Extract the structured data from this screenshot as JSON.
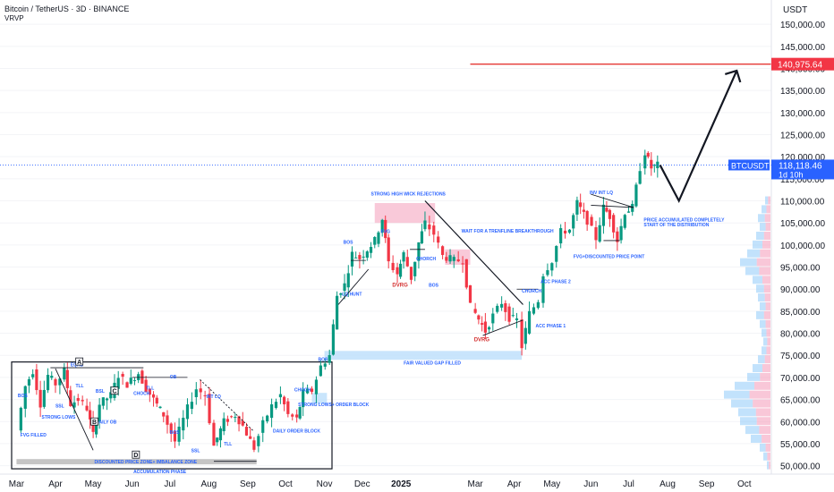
{
  "header": {
    "title": "Bitcoin / TetherUS · 3D · BINANCE",
    "indicator": "VRVP"
  },
  "chart_data": {
    "type": "candlestick",
    "symbol": "BTCUSDT",
    "y_axis": {
      "unit": "USDT",
      "ticks": [
        "150,000.00",
        "145,000.00",
        "140,000.00",
        "135,000.00",
        "130,000.00",
        "125,000.00",
        "120,000.00",
        "115,000.00",
        "110,000.00",
        "105,000.00",
        "100,000.00",
        "95,000.00",
        "90,000.00",
        "85,000.00",
        "80,000.00",
        "75,000.00",
        "70,000.00",
        "65,000.00",
        "60,000.00",
        "55,000.00",
        "50,000.00"
      ],
      "values": [
        150000,
        145000,
        140000,
        135000,
        130000,
        125000,
        120000,
        115000,
        110000,
        105000,
        100000,
        95000,
        90000,
        85000,
        80000,
        75000,
        70000,
        65000,
        60000,
        55000,
        50000
      ],
      "ylim": [
        48500,
        155500
      ]
    },
    "x_axis": {
      "ticks": [
        "Mar",
        "Apr",
        "May",
        "Jun",
        "Jul",
        "Aug",
        "Sep",
        "Oct",
        "Nov",
        "Dec",
        "2025",
        "Mar",
        "Apr",
        "May",
        "Jun",
        "Jul",
        "Aug",
        "Sep",
        "Oct"
      ]
    },
    "price_labels": {
      "target": "140,975.64",
      "current_symbol": "BTCUSDT",
      "current_price": "118,118.46",
      "countdown": "1d 10h"
    },
    "target_value": 140975.64,
    "current_value": 118118.46,
    "close_path": [
      [
        "2024-03-01",
        58000
      ],
      [
        "2024-03-08",
        68000
      ],
      [
        "2024-03-14",
        71500
      ],
      [
        "2024-03-20",
        64000
      ],
      [
        "2024-03-26",
        70500
      ],
      [
        "2024-04-01",
        68500
      ],
      [
        "2024-04-08",
        71500
      ],
      [
        "2024-04-13",
        64000
      ],
      [
        "2024-04-19",
        65000
      ],
      [
        "2024-04-26",
        63000
      ],
      [
        "2024-05-01",
        57000
      ],
      [
        "2024-05-06",
        64000
      ],
      [
        "2024-05-15",
        66000
      ],
      [
        "2024-05-21",
        70500
      ],
      [
        "2024-05-28",
        68500
      ],
      [
        "2024-06-06",
        71000
      ],
      [
        "2024-06-12",
        67500
      ],
      [
        "2024-06-18",
        65000
      ],
      [
        "2024-06-26",
        61500
      ],
      [
        "2024-07-05",
        55500
      ],
      [
        "2024-07-15",
        63000
      ],
      [
        "2024-07-22",
        67500
      ],
      [
        "2024-07-29",
        66000
      ],
      [
        "2024-08-05",
        54500
      ],
      [
        "2024-08-13",
        60000
      ],
      [
        "2024-08-22",
        61500
      ],
      [
        "2024-08-28",
        59000
      ],
      [
        "2024-09-06",
        54000
      ],
      [
        "2024-09-13",
        59500
      ],
      [
        "2024-09-20",
        63500
      ],
      [
        "2024-09-27",
        66000
      ],
      [
        "2024-10-03",
        61500
      ],
      [
        "2024-10-10",
        60500
      ],
      [
        "2024-10-15",
        66500
      ],
      [
        "2024-10-22",
        67000
      ],
      [
        "2024-10-29",
        72500
      ],
      [
        "2024-11-05",
        75000
      ],
      [
        "2024-11-11",
        88500
      ],
      [
        "2024-11-17",
        91000
      ],
      [
        "2024-11-23",
        98000
      ],
      [
        "2024-11-29",
        97000
      ],
      [
        "2024-12-05",
        99000
      ],
      [
        "2024-12-11",
        101000
      ],
      [
        "2024-12-17",
        106000
      ],
      [
        "2024-12-22",
        96000
      ],
      [
        "2024-12-29",
        93500
      ],
      [
        "2025-01-03",
        98000
      ],
      [
        "2025-01-09",
        92500
      ],
      [
        "2025-01-15",
        100500
      ],
      [
        "2025-01-20",
        105000
      ],
      [
        "2025-01-27",
        102500
      ],
      [
        "2025-02-03",
        97500
      ],
      [
        "2025-02-12",
        96500
      ],
      [
        "2025-02-19",
        96500
      ],
      [
        "2025-02-25",
        86000
      ],
      [
        "2025-03-01",
        84500
      ],
      [
        "2025-03-09",
        80500
      ],
      [
        "2025-03-15",
        84000
      ],
      [
        "2025-03-22",
        87000
      ],
      [
        "2025-03-28",
        83500
      ],
      [
        "2025-04-03",
        83000
      ],
      [
        "2025-04-07",
        77000
      ],
      [
        "2025-04-13",
        84500
      ],
      [
        "2025-04-20",
        87500
      ],
      [
        "2025-04-24",
        93500
      ],
      [
        "2025-05-01",
        96500
      ],
      [
        "2025-05-08",
        103000
      ],
      [
        "2025-05-15",
        103500
      ],
      [
        "2025-05-21",
        109500
      ],
      [
        "2025-05-29",
        105500
      ],
      [
        "2025-06-05",
        101500
      ],
      [
        "2025-06-11",
        108500
      ],
      [
        "2025-06-16",
        106500
      ],
      [
        "2025-06-22",
        101000
      ],
      [
        "2025-06-28",
        107500
      ],
      [
        "2025-07-04",
        108500
      ],
      [
        "2025-07-10",
        117500
      ],
      [
        "2025-07-14",
        121000
      ],
      [
        "2025-07-19",
        117500
      ],
      [
        "2025-07-24",
        118100
      ]
    ],
    "projection": [
      [
        "2025-07-26",
        118100
      ],
      [
        "2025-08-10",
        110000
      ],
      [
        "2025-09-25",
        139500
      ]
    ],
    "volume_profile": "horizontal volume bars on right side, concentrated 55,000–110,000"
  },
  "annotations": {
    "eqhs": "EQHS",
    "bos": "BOS",
    "ssl": "SSL",
    "tll": "TLL",
    "bsl": "BSL",
    "choch": "CHOCH",
    "ob": "OB",
    "int_lq": "INT LQ",
    "choch_caps": "CHORCH",
    "fvg": "FVG",
    "dvrg": "DVRG",
    "strong_lows": "STRONG LOWS",
    "daily_ob": "DAILY OB",
    "fvg_filled": "FVG FILLED",
    "discounted_zone": "DISCOUNTED PRICE ZONE+ IMBALANCE ZONE",
    "accumulation_phase": "ACCUMULATION PHASE",
    "daily_order_block": "DAILY ORDER BLOCK",
    "strong_lows_ob": "STRONG LOWS+ ORDER BLOCK",
    "fvg_gap_filled": "FAIR VALUED GAP FILLED",
    "lq_hunt": "LQ HUNT",
    "strong_high_wick": "STRONG HIGH WICK REJECTIONS",
    "wait_trendline": "WAIT FOR A TRENFLINE BREAKTHROUGH",
    "acc_phase_1": "ACC PHASE 1",
    "acc_phase_2": "ACC PHASE 2",
    "fvg_discounted": "FVG+DISCOUNTED PRICE POINT",
    "inv_int_lq": "INV INT LQ",
    "price_accumulated_1": "PRICE ACCUMULATED COMPLETELY",
    "price_accumulated_2": "START OF THE DISTRIBUTION",
    "box_a": "A",
    "box_b": "B",
    "box_c": "C",
    "box_d": "D"
  },
  "colors": {
    "up": "#089981",
    "down": "#f23645",
    "annotation": "#2962ff",
    "target_line": "#e53935",
    "current_tag": "#2962ff",
    "fvg_zone": "#bbdefb",
    "rejection_zone": "#f8bbd0",
    "discount_zone": "#9e9e9e"
  }
}
